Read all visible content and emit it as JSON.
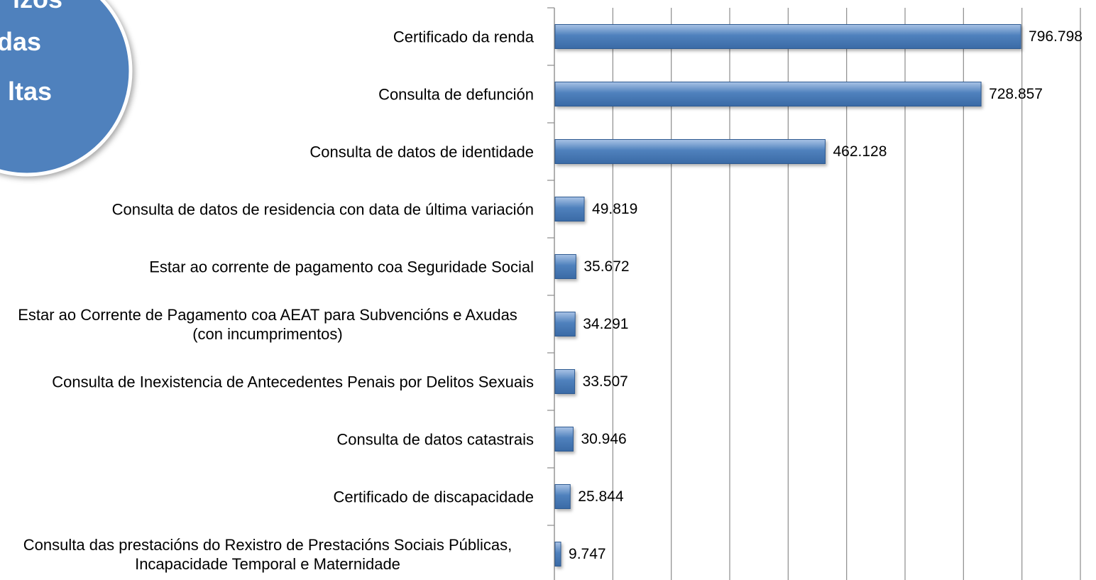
{
  "badge": {
    "lines": [
      "izos",
      "das",
      "ltas"
    ]
  },
  "chart_data": {
    "type": "bar",
    "orientation": "horizontal",
    "categories": [
      "Certificado da renda",
      "Consulta de defunción",
      "Consulta de datos de identidade",
      "Consulta de datos de residencia con data de última variación",
      "Estar ao corrente de pagamento coa Seguridade Social",
      "Estar ao Corrente de Pagamento coa AEAT para Subvencións e Axudas (con incumprimentos)",
      "Consulta de Inexistencia de Antecedentes Penais por Delitos Sexuais",
      "Consulta de datos catastrais",
      "Certificado de discapacidade",
      "Consulta das prestacións do Rexistro de Prestacións Sociais Públicas, Incapacidade Temporal e Maternidade"
    ],
    "values": [
      796798,
      728857,
      462128,
      49819,
      35672,
      34291,
      33507,
      30946,
      25844,
      9747
    ],
    "value_labels": [
      "796.798",
      "728.857",
      "462.128",
      "49.819",
      "35.672",
      "34.291",
      "33.507",
      "30.946",
      "25.844",
      "9.747"
    ],
    "color": "#4f81bd",
    "xlim": [
      0,
      900000
    ],
    "xticks": [
      0,
      100000,
      200000,
      300000,
      400000,
      500000,
      600000,
      700000,
      800000,
      900000
    ],
    "grid": true
  }
}
